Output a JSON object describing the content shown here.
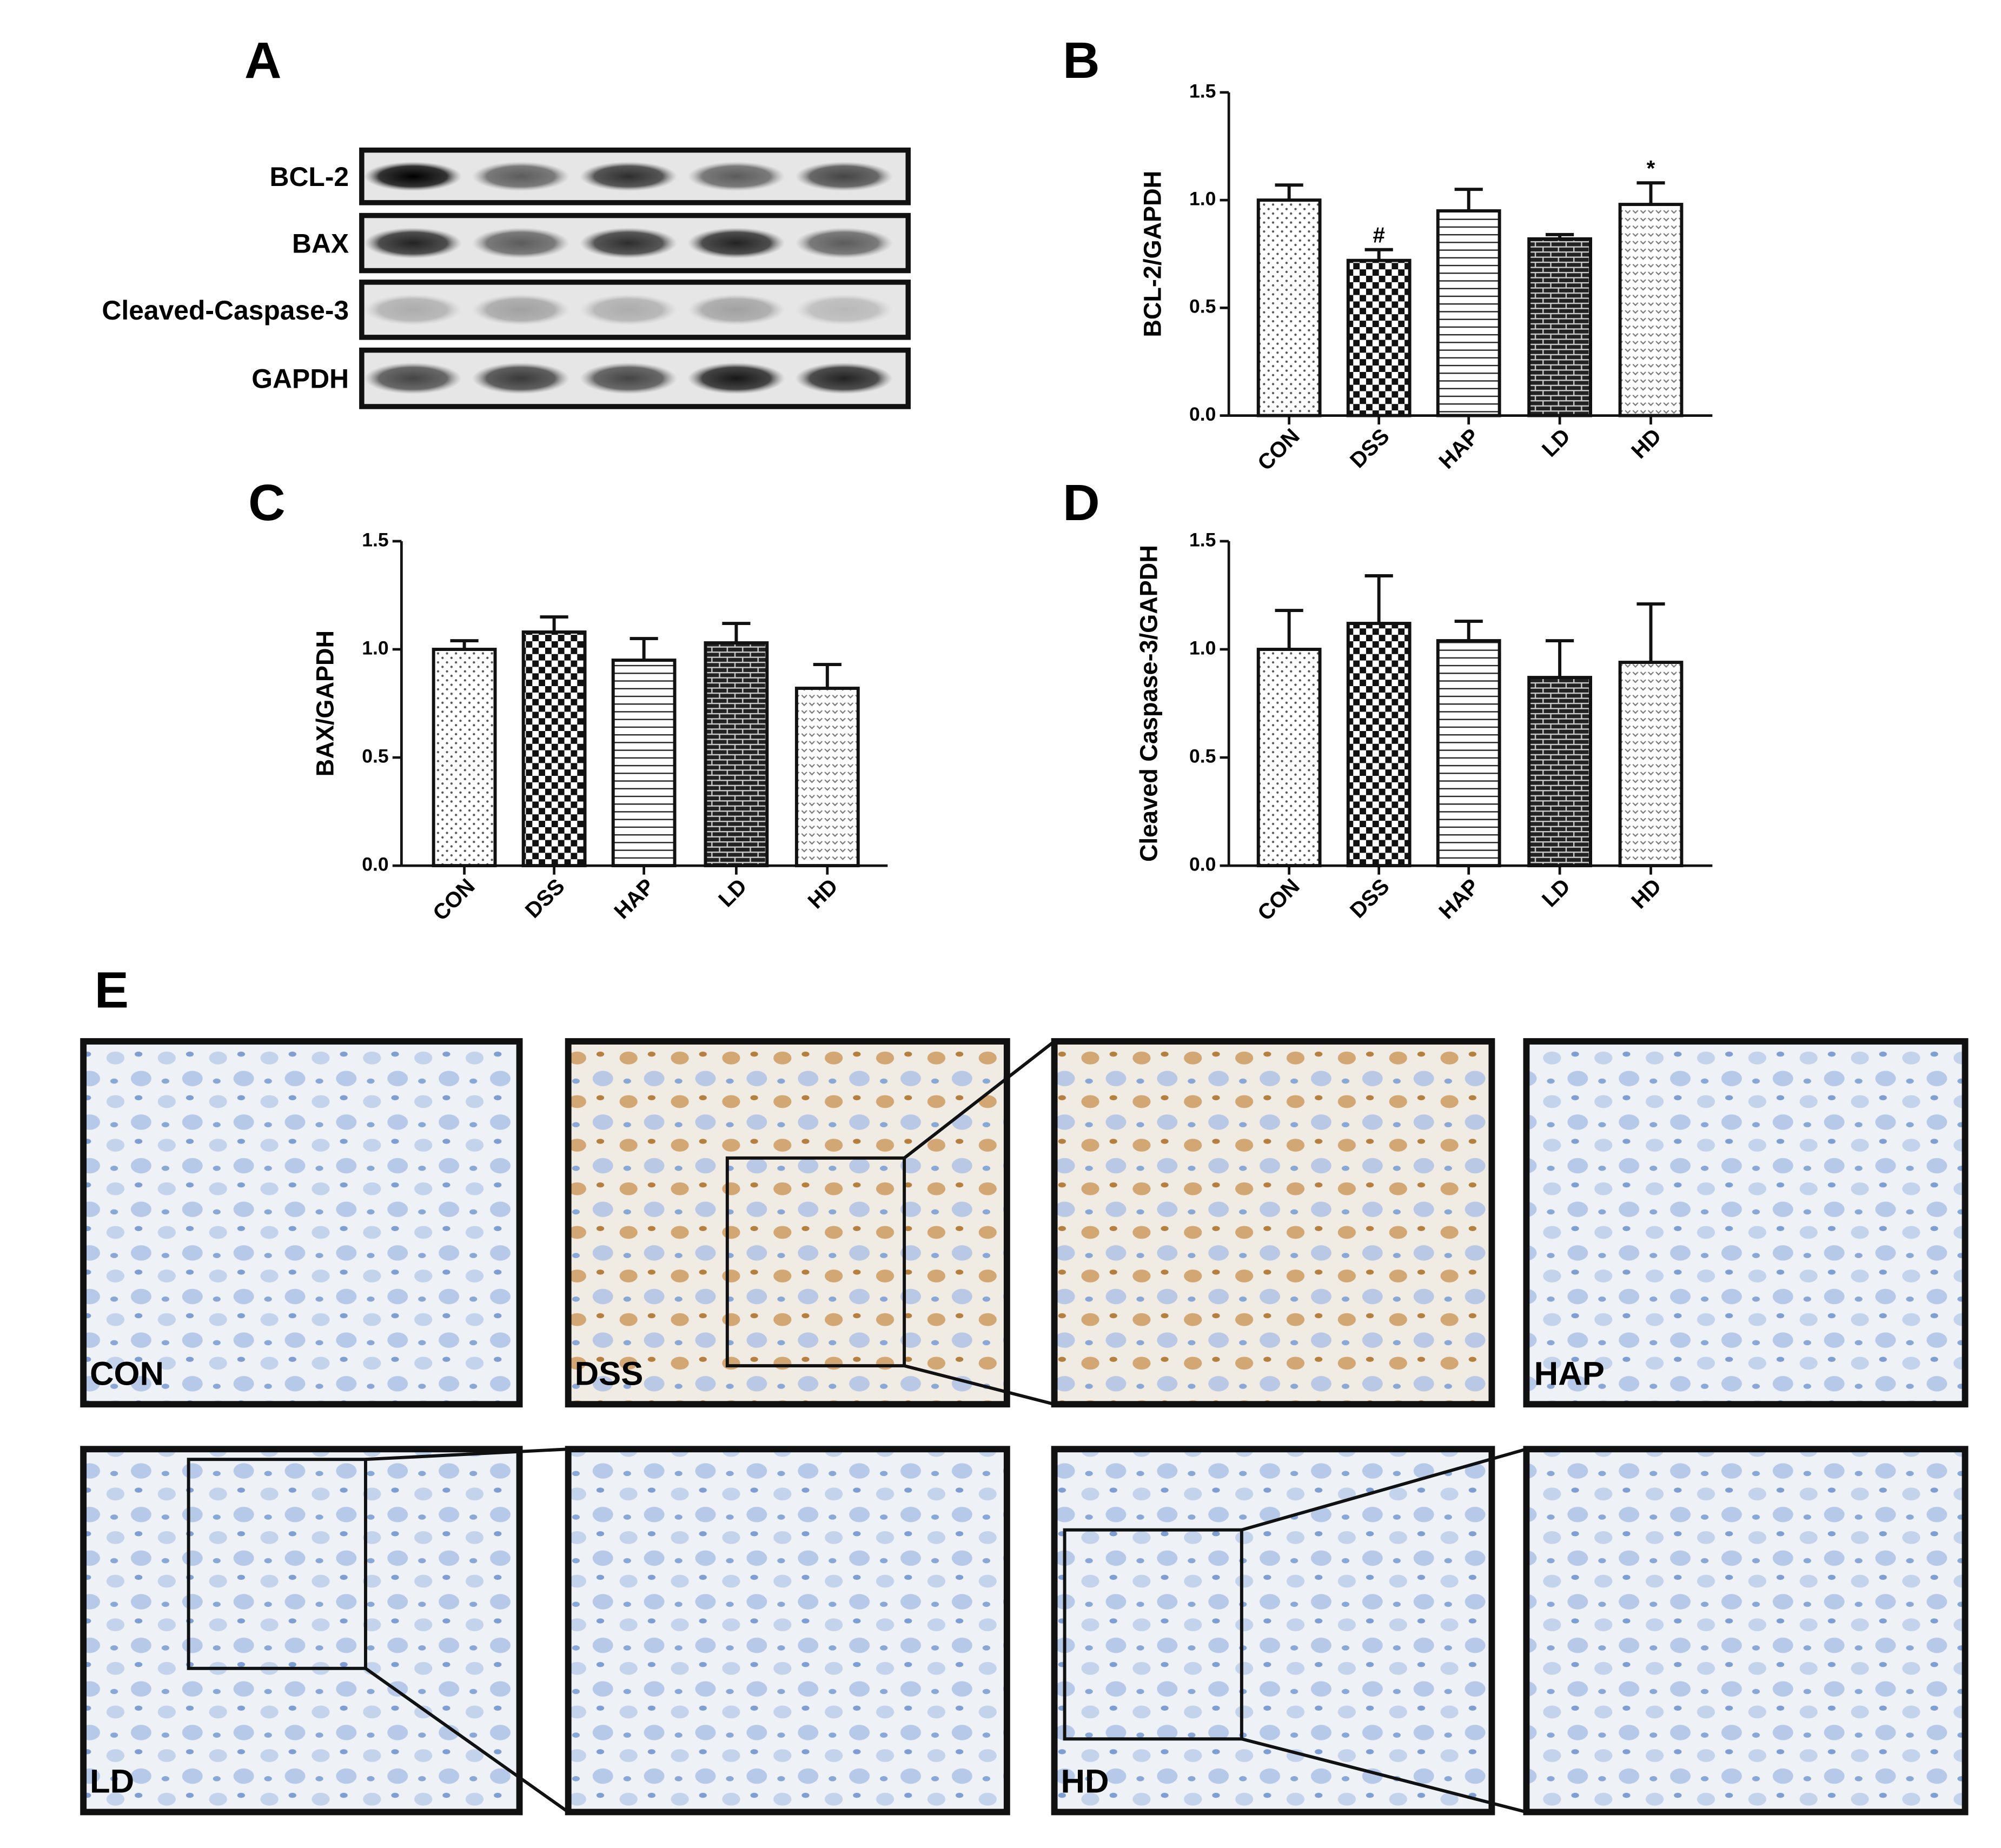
{
  "blot": {
    "label": "A",
    "rows": [
      "BCL-2",
      "BAX",
      "Cleaved-Caspase-3",
      "GAPDH"
    ]
  },
  "chart_data": [
    {
      "type": "bar",
      "label": "B",
      "y_label": "BCL-2/GAPDH",
      "categories": [
        "CON",
        "DSS",
        "HAP",
        "LD",
        "HD"
      ],
      "values": [
        1.0,
        0.72,
        0.95,
        0.82,
        0.98
      ],
      "errors": [
        0.07,
        0.05,
        0.1,
        0.02,
        0.1
      ],
      "fill_patterns": [
        "dots",
        "checker",
        "hlines",
        "brick",
        "vees"
      ],
      "annotations": [
        {
          "text": "#",
          "category": "DSS"
        },
        {
          "text": "*",
          "category": "HD"
        }
      ],
      "ylim": [
        0,
        1.5
      ],
      "yticks": [
        {
          "value": 0,
          "label": "0.0"
        },
        0.5,
        {
          "value": 1,
          "label": "1.0"
        },
        1.5
      ]
    },
    {
      "type": "bar",
      "label": "C",
      "y_label": "BAX/GAPDH",
      "categories": [
        "CON",
        "DSS",
        "HAP",
        "LD",
        "HD"
      ],
      "values": [
        1.0,
        1.08,
        0.95,
        1.03,
        0.82
      ],
      "errors": [
        0.04,
        0.07,
        0.1,
        0.09,
        0.11
      ],
      "fill_patterns": [
        "dots",
        "checker",
        "hlines",
        "brick",
        "vees"
      ],
      "ylim": [
        0,
        1.5
      ],
      "yticks": [
        {
          "value": 0,
          "label": "0.0"
        },
        0.5,
        {
          "value": 1,
          "label": "1.0"
        },
        1.5
      ]
    },
    {
      "type": "bar",
      "label": "D",
      "y_label": "Cleaved Caspase-3/GAPDH",
      "categories": [
        "CON",
        "DSS",
        "HAP",
        "LD",
        "HD"
      ],
      "values": [
        1.0,
        1.12,
        1.04,
        0.87,
        0.94
      ],
      "errors": [
        0.18,
        0.22,
        0.09,
        0.17,
        0.27
      ],
      "fill_patterns": [
        "dots",
        "checker",
        "hlines",
        "brick",
        "vees"
      ],
      "ylim": [
        0,
        1.5
      ],
      "yticks": [
        {
          "value": 0,
          "label": "0.0"
        },
        0.5,
        {
          "value": 1,
          "label": "1.0"
        },
        1.5
      ]
    }
  ],
  "ihc": {
    "label": "E",
    "images": [
      "CON",
      "DSS",
      "HAP",
      "LD",
      "HD"
    ]
  }
}
